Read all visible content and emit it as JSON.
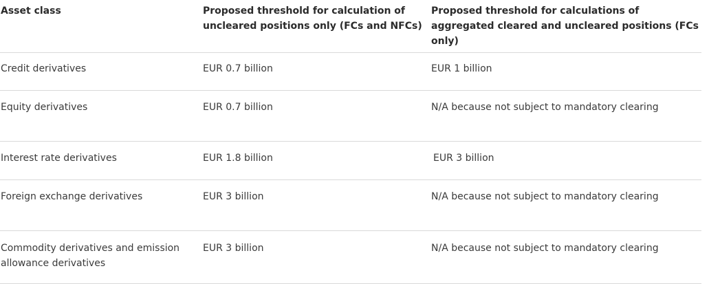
{
  "table": {
    "headers": [
      "Asset class",
      "Proposed threshold for calculation of uncleared positions only (FCs and NFCs)",
      "Proposed threshold for calculations of aggregated cleared and uncleared positions (FCs only)"
    ],
    "rows": [
      [
        "Credit derivatives",
        "EUR 0.7 billion",
        "EUR 1 billion"
      ],
      [
        "Equity derivatives",
        "EUR 0.7 billion",
        "N/A because not subject to mandatory clearing"
      ],
      [
        "Interest rate derivatives",
        "EUR 1.8 billion",
        "EUR 3 billion"
      ],
      [
        "Foreign exchange derivatives",
        "EUR 3 billion",
        "N/A because not subject to mandatory clearing"
      ],
      [
        "Commodity derivatives and emission allowance derivatives",
        "EUR 3 billion",
        "N/A because not subject to mandatory clearing"
      ]
    ]
  }
}
